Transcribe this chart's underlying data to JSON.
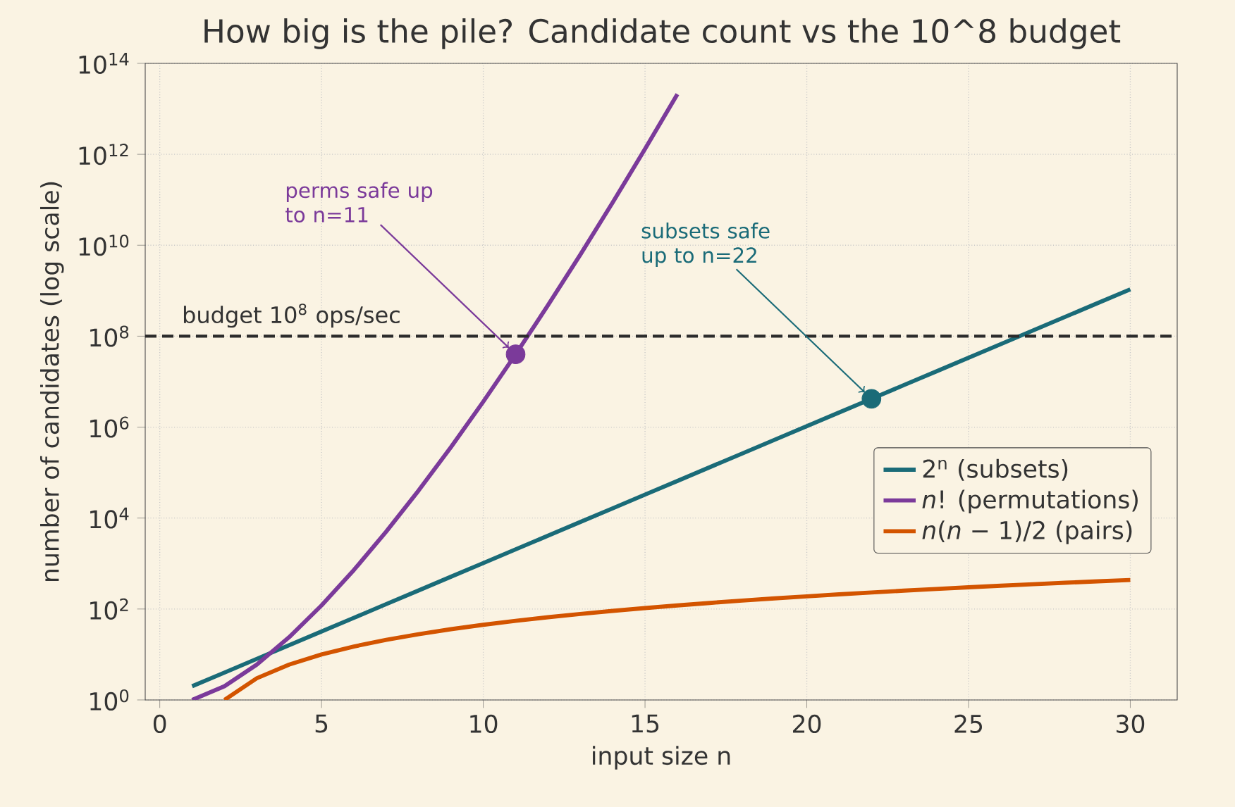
{
  "chart_data": {
    "type": "line",
    "title": "How big is the pile? Candidate count vs the 10^8 budget",
    "xlabel": "input size  n",
    "ylabel": "number of candidates (log scale)",
    "log": "y",
    "grid": true,
    "legend": "bottom right",
    "line_style": "solid",
    "xlim": [
      -0.45,
      31.45
    ],
    "xticks": [
      0,
      5,
      10,
      15,
      20,
      25,
      30
    ],
    "ylim": [
      1,
      100000000000000.0
    ],
    "yticks": [
      {
        "value": 1,
        "label": "10$^{0}$"
      },
      {
        "value": 100,
        "label": "10$^{2}$"
      },
      {
        "value": 10000,
        "label": "10$^{4}$"
      },
      {
        "value": 1000000,
        "label": "10$^{6}$"
      },
      {
        "value": 100000000,
        "label": "10$^{8}$"
      },
      {
        "value": 10000000000,
        "label": "10$^{10}$"
      },
      {
        "value": 1000000000000,
        "label": "10$^{12}$"
      },
      {
        "value": 100000000000000,
        "label": "10$^{14}$"
      }
    ],
    "series": [
      {
        "name": "2$^{n}$ (subsets)",
        "color": "#1a6b78",
        "x": [
          1,
          2,
          3,
          4,
          5,
          6,
          7,
          8,
          9,
          10,
          11,
          12,
          13,
          14,
          15,
          16,
          17,
          18,
          19,
          20,
          21,
          22,
          23,
          24,
          25,
          26,
          27,
          28,
          29,
          30
        ],
        "values": [
          2,
          4,
          8,
          16,
          32,
          64,
          128,
          256,
          512,
          1024,
          2048,
          4096,
          8192,
          16384,
          32768,
          65536,
          131072,
          262144,
          524288,
          1048576,
          2097152,
          4194304,
          8388608,
          16777216,
          33554432,
          67108864,
          134217728,
          268435456,
          536870912,
          1073741824
        ]
      },
      {
        "name": "*n*!  (permutations)",
        "color": "#7b3a9a",
        "x": [
          1,
          2,
          3,
          4,
          5,
          6,
          7,
          8,
          9,
          10,
          11,
          12,
          13,
          14,
          15,
          16
        ],
        "values": [
          1,
          2,
          6,
          24,
          120,
          720,
          5040,
          40320,
          362880,
          3628800,
          39916800,
          479001600,
          6227020800,
          87178291200,
          1307674368000,
          20922789888000
        ]
      },
      {
        "name": "*n*(*n* − 1)/2 (pairs)",
        "color": "#d35400",
        "x": [
          2,
          3,
          4,
          5,
          6,
          7,
          8,
          9,
          10,
          11,
          12,
          13,
          14,
          15,
          16,
          17,
          18,
          19,
          20,
          21,
          22,
          23,
          24,
          25,
          26,
          27,
          28,
          29,
          30
        ],
        "values": [
          1,
          3,
          6,
          10,
          15,
          21,
          28,
          36,
          45,
          55,
          66,
          78,
          91,
          105,
          120,
          136,
          153,
          171,
          190,
          210,
          231,
          253,
          276,
          300,
          325,
          351,
          378,
          406,
          435
        ]
      },
      {
        "type": "scatter",
        "marker": "circle",
        "color": "#7b3a9a",
        "x": [
          11
        ],
        "values": [
          39916800
        ]
      },
      {
        "type": "scatter",
        "marker": "circle",
        "color": "#1a6b78",
        "x": [
          22
        ],
        "values": [
          4194304
        ]
      }
    ],
    "ref_lines": [
      {
        "axis": "y",
        "value": 100000000,
        "label": "budget  10$^{8}$ ops/sec",
        "color": "#2b2b2b",
        "line_style": "dashed"
      }
    ],
    "annotations": [
      {
        "text": "perms safe up to n=11",
        "x": 11,
        "y": 39916800
      },
      {
        "text": "subsets safe up to n=22",
        "x": 22,
        "y": 4194304
      }
    ]
  }
}
